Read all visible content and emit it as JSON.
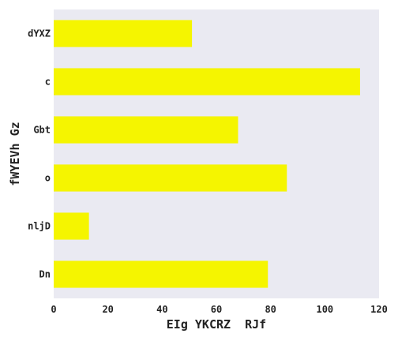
{
  "chart_data": {
    "type": "bar",
    "orientation": "horizontal",
    "categories": [
      "dYXZ",
      "c",
      "Gbt",
      "o",
      "nljD",
      "Dn"
    ],
    "values": [
      51,
      113,
      68,
      86,
      13,
      79
    ],
    "xlabel": "EIg YKCRZ  RJf",
    "ylabel": "fWYEVh Gz",
    "xlim": [
      0,
      120
    ],
    "xticks": [
      0,
      20,
      40,
      60,
      80,
      100,
      120
    ],
    "grid": false,
    "colors": {
      "bar": "#f5f500",
      "plot_background": "#eaeaf2"
    }
  }
}
